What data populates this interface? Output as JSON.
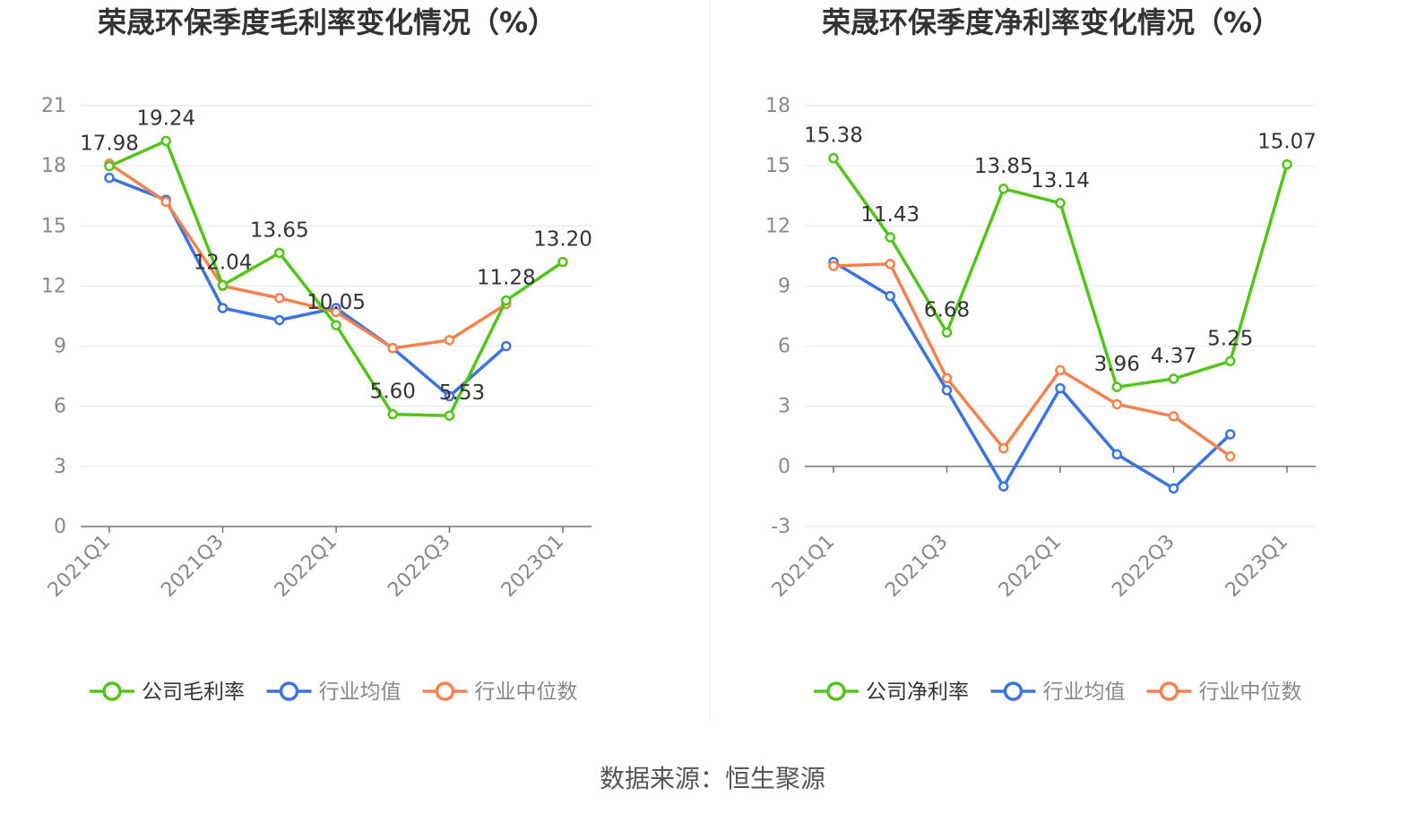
{
  "source": "数据来源：恒生聚源",
  "chart_data": [
    {
      "type": "line",
      "title": "荣晟环保季度毛利率变化情况（%）",
      "categories": [
        "2021Q1",
        "2021Q2",
        "2021Q3",
        "2021Q4",
        "2022Q1",
        "2022Q2",
        "2022Q3",
        "2022Q4",
        "2023Q1"
      ],
      "tick_labels": [
        "2021Q1",
        "2021Q3",
        "2022Q1",
        "2022Q3",
        "2023Q1"
      ],
      "ylim": [
        0,
        21
      ],
      "yticks": [
        0,
        3,
        6,
        9,
        12,
        15,
        18,
        21
      ],
      "grid": true,
      "legend_position": "bottom",
      "series": [
        {
          "name": "公司毛利率",
          "color": "#52c41a",
          "values": [
            17.98,
            19.24,
            12.04,
            13.65,
            10.05,
            5.6,
            5.53,
            11.28,
            13.2
          ],
          "show_labels": true
        },
        {
          "name": "行业均值",
          "color": "#3b73e0",
          "values": [
            17.4,
            16.3,
            10.9,
            10.3,
            10.9,
            8.9,
            6.5,
            9.0,
            null
          ],
          "show_labels": false
        },
        {
          "name": "行业中位数",
          "color": "#f5814f",
          "values": [
            18.1,
            16.2,
            12.0,
            11.4,
            10.7,
            8.9,
            9.3,
            11.1,
            null
          ],
          "show_labels": false
        }
      ]
    },
    {
      "type": "line",
      "title": "荣晟环保季度净利率变化情况（%）",
      "categories": [
        "2021Q1",
        "2021Q2",
        "2021Q3",
        "2021Q4",
        "2022Q1",
        "2022Q2",
        "2022Q3",
        "2022Q4",
        "2023Q1"
      ],
      "tick_labels": [
        "2021Q1",
        "2021Q3",
        "2022Q1",
        "2022Q3",
        "2023Q1"
      ],
      "ylim": [
        -3,
        18
      ],
      "yticks": [
        -3,
        0,
        3,
        6,
        9,
        12,
        15,
        18
      ],
      "grid": true,
      "legend_position": "bottom",
      "series": [
        {
          "name": "公司净利率",
          "color": "#52c41a",
          "values": [
            15.38,
            11.43,
            6.68,
            13.85,
            13.14,
            3.96,
            4.37,
            5.25,
            15.07
          ],
          "show_labels": true
        },
        {
          "name": "行业均值",
          "color": "#3b73e0",
          "values": [
            10.2,
            8.5,
            3.8,
            -1.0,
            3.9,
            0.6,
            -1.1,
            1.6,
            null
          ],
          "show_labels": false
        },
        {
          "name": "行业中位数",
          "color": "#f5814f",
          "values": [
            10.0,
            10.1,
            4.4,
            0.9,
            4.8,
            3.1,
            2.5,
            0.5,
            null
          ],
          "show_labels": false
        }
      ]
    }
  ]
}
